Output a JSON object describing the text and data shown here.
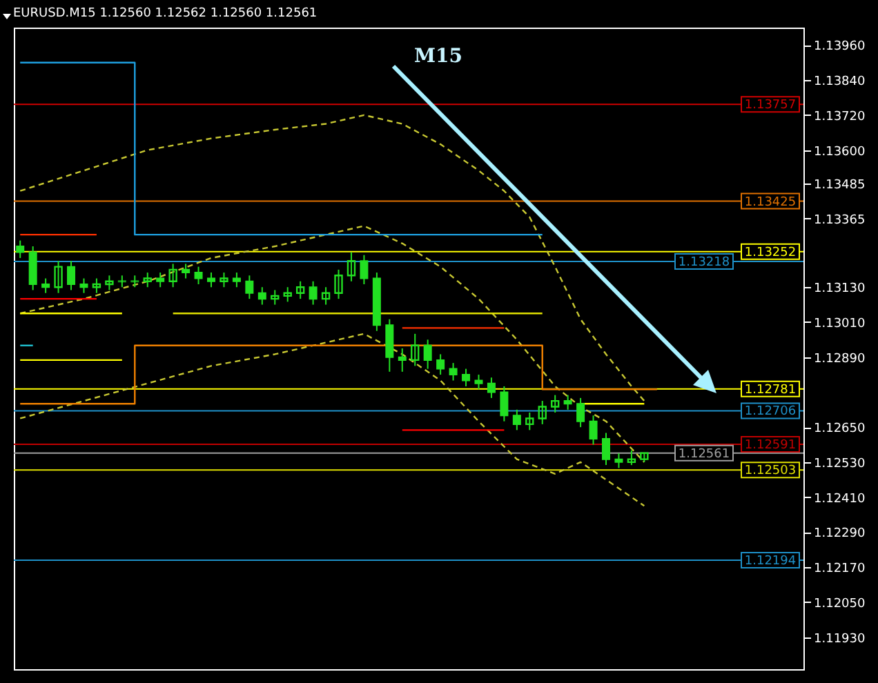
{
  "chart_data": {
    "type": "candlestick",
    "title": "EURUSD.M15  1.12560 1.12562 1.12560 1.12561",
    "annotations": [
      "M15"
    ],
    "categories": [
      null,
      null,
      null,
      null,
      null,
      null,
      null,
      null,
      null,
      null,
      null,
      null,
      null,
      null,
      null,
      null,
      null,
      null,
      null,
      null,
      null,
      null,
      null,
      null,
      null,
      null,
      null,
      null,
      null,
      null,
      null,
      null,
      null,
      null,
      null,
      null,
      null,
      null,
      null,
      null,
      null,
      null,
      null,
      null,
      null,
      null,
      null,
      null,
      null,
      null,
      null,
      null,
      null,
      null,
      null,
      null,
      null,
      null,
      null,
      null,
      null,
      null
    ],
    "color": "#22e022",
    "ohlc": [
      [
        1.1327,
        1.1329,
        1.1323,
        1.1325
      ],
      [
        1.1325,
        1.1327,
        1.1312,
        1.1314
      ],
      [
        1.1314,
        1.1316,
        1.1311,
        1.1313
      ],
      [
        1.1313,
        1.1322,
        1.1311,
        1.132
      ],
      [
        1.132,
        1.1322,
        1.1312,
        1.1314
      ],
      [
        1.1314,
        1.1316,
        1.1311,
        1.1313
      ],
      [
        1.1313,
        1.1316,
        1.1311,
        1.1314
      ],
      [
        1.1314,
        1.1317,
        1.1312,
        1.1315
      ],
      [
        1.1315,
        1.1317,
        1.1313,
        1.1315
      ],
      [
        1.1315,
        1.1317,
        1.1313,
        1.1315
      ],
      [
        1.1315,
        1.1318,
        1.1313,
        1.1316
      ],
      [
        1.1316,
        1.1318,
        1.1313,
        1.1315
      ],
      [
        1.1315,
        1.1321,
        1.1313,
        1.1319
      ],
      [
        1.1319,
        1.1321,
        1.1316,
        1.1318
      ],
      [
        1.1318,
        1.132,
        1.1314,
        1.1316
      ],
      [
        1.1316,
        1.1318,
        1.1313,
        1.1315
      ],
      [
        1.1315,
        1.1318,
        1.1313,
        1.1316
      ],
      [
        1.1316,
        1.1318,
        1.1313,
        1.1315
      ],
      [
        1.1315,
        1.1317,
        1.1309,
        1.1311
      ],
      [
        1.1311,
        1.1313,
        1.1307,
        1.1309
      ],
      [
        1.1309,
        1.1312,
        1.1307,
        1.131
      ],
      [
        1.131,
        1.1313,
        1.1308,
        1.1311
      ],
      [
        1.1311,
        1.1315,
        1.1309,
        1.1313
      ],
      [
        1.1313,
        1.1315,
        1.1307,
        1.1309
      ],
      [
        1.1309,
        1.1313,
        1.1307,
        1.1311
      ],
      [
        1.1311,
        1.1319,
        1.1309,
        1.1317
      ],
      [
        1.1317,
        1.1325,
        1.1315,
        1.1322
      ],
      [
        1.1322,
        1.1324,
        1.1314,
        1.1316
      ],
      [
        1.1316,
        1.1318,
        1.1298,
        1.13
      ],
      [
        1.13,
        1.1302,
        1.1284,
        1.1289
      ],
      [
        1.1289,
        1.1292,
        1.1284,
        1.1288
      ],
      [
        1.1288,
        1.1297,
        1.1286,
        1.1293
      ],
      [
        1.1293,
        1.1295,
        1.1285,
        1.1288
      ],
      [
        1.1288,
        1.129,
        1.1283,
        1.1285
      ],
      [
        1.1285,
        1.1287,
        1.1281,
        1.1283
      ],
      [
        1.1283,
        1.1285,
        1.1279,
        1.1281
      ],
      [
        1.1281,
        1.1283,
        1.1278,
        1.128
      ],
      [
        1.128,
        1.1282,
        1.1275,
        1.1277
      ],
      [
        1.1277,
        1.1279,
        1.1267,
        1.1269
      ],
      [
        1.1269,
        1.1271,
        1.1264,
        1.1266
      ],
      [
        1.1266,
        1.127,
        1.1264,
        1.1268
      ],
      [
        1.1268,
        1.1274,
        1.1266,
        1.1272
      ],
      [
        1.1272,
        1.1276,
        1.127,
        1.1274
      ],
      [
        1.1274,
        1.1276,
        1.1271,
        1.1273
      ],
      [
        1.1273,
        1.1275,
        1.1265,
        1.1267
      ],
      [
        1.1267,
        1.1269,
        1.1259,
        1.1261
      ],
      [
        1.1261,
        1.1263,
        1.1252,
        1.1254
      ],
      [
        1.1254,
        1.1256,
        1.1251,
        1.1253
      ],
      [
        1.1253,
        1.1257,
        1.1252,
        1.1254
      ],
      [
        1.1254,
        1.12562,
        1.1253,
        1.12561
      ],
      null,
      null,
      null,
      null,
      null,
      null,
      null,
      null,
      null,
      null,
      null,
      null
    ],
    "series": [
      {
        "type": "line",
        "line_style": "dashed",
        "color": "#c8c832",
        "values": [
          1.1346,
          null,
          null,
          null,
          null,
          1.1353,
          null,
          null,
          null,
          null,
          1.136,
          null,
          null,
          null,
          null,
          1.1364,
          null,
          null,
          null,
          null,
          1.1367,
          null,
          null,
          null,
          1.1369,
          null,
          null,
          1.1372,
          null,
          null,
          1.1369,
          null,
          null,
          1.1362,
          null,
          null,
          1.1353,
          null,
          1.1346,
          null,
          1.1337,
          null,
          1.132,
          null,
          1.1302,
          null,
          1.129,
          null,
          1.1279,
          1.1274,
          null,
          null,
          null,
          null,
          null,
          null,
          null,
          null,
          null,
          null,
          null,
          null
        ]
      },
      {
        "type": "line",
        "line_style": "dashed",
        "color": "#c8c832",
        "values": [
          1.1304,
          null,
          null,
          null,
          null,
          1.1309,
          null,
          null,
          null,
          null,
          1.1315,
          null,
          null,
          null,
          null,
          1.1323,
          null,
          null,
          null,
          null,
          1.1327,
          null,
          null,
          null,
          null,
          1.1332,
          null,
          1.1334,
          null,
          null,
          1.1328,
          null,
          null,
          1.132,
          null,
          null,
          1.1309,
          null,
          null,
          1.1295,
          null,
          null,
          1.1279,
          null,
          1.1272,
          null,
          1.1267,
          null,
          null,
          1.1253,
          null,
          null,
          null,
          null,
          null,
          null,
          null,
          null,
          null,
          null,
          null,
          null
        ]
      },
      {
        "type": "line",
        "line_style": "dashed",
        "color": "#c8c832",
        "values": [
          1.1268,
          null,
          null,
          null,
          null,
          1.1274,
          null,
          null,
          null,
          null,
          1.128,
          null,
          null,
          null,
          null,
          1.1286,
          null,
          null,
          null,
          null,
          1.129,
          null,
          null,
          null,
          null,
          1.1295,
          null,
          1.1297,
          null,
          null,
          1.129,
          null,
          null,
          1.1281,
          null,
          null,
          1.1267,
          null,
          null,
          1.1254,
          null,
          null,
          1.1249,
          null,
          1.1253,
          null,
          1.1247,
          null,
          null,
          1.1238,
          null,
          null,
          null,
          null,
          null,
          null,
          null,
          null,
          null,
          null,
          null,
          null
        ]
      },
      {
        "type": "step",
        "color": "#1ea0e0",
        "values": [
          1.139,
          null,
          null,
          null,
          null,
          null,
          null,
          null,
          null,
          1.1331,
          null,
          null,
          null,
          null,
          null,
          null,
          null,
          null,
          null,
          null,
          null,
          null,
          null,
          null,
          null,
          null,
          null,
          null,
          null,
          null,
          null,
          null,
          null,
          null,
          null,
          null,
          null,
          null,
          null,
          null,
          null,
          1.1331,
          null,
          null,
          null,
          null,
          null,
          null,
          null,
          null,
          null,
          null,
          null,
          null,
          null,
          null,
          null,
          null,
          null,
          null,
          null,
          null
        ]
      },
      {
        "type": "step",
        "color": "#f08000",
        "values": [
          1.1273,
          null,
          null,
          null,
          null,
          null,
          null,
          null,
          null,
          1.1293,
          null,
          null,
          null,
          null,
          null,
          null,
          null,
          null,
          null,
          null,
          null,
          null,
          null,
          null,
          null,
          null,
          null,
          null,
          null,
          null,
          null,
          null,
          null,
          null,
          null,
          null,
          null,
          null,
          null,
          null,
          null,
          1.1278,
          null,
          null,
          null,
          null,
          null,
          null,
          null,
          null,
          1.1278,
          null,
          null,
          null,
          null,
          null,
          null,
          null,
          null,
          null,
          null,
          null
        ]
      },
      {
        "type": "line",
        "color": "#ff3000",
        "values": [
          1.1331,
          null,
          null,
          null,
          null,
          null,
          1.1331,
          null,
          null,
          null,
          null,
          null,
          null,
          null,
          null,
          null,
          null,
          null,
          null,
          null,
          null,
          null,
          null,
          null,
          null,
          null,
          null,
          null,
          null,
          null,
          null,
          null,
          null,
          null,
          null,
          null,
          null,
          null,
          null,
          null,
          null,
          null,
          null,
          null,
          null,
          null,
          null,
          null,
          null,
          null,
          null,
          null,
          null,
          null,
          null,
          null,
          null,
          null,
          null,
          null,
          null,
          null
        ]
      },
      {
        "type": "line",
        "color": "#ff0000",
        "values": [
          1.1309,
          null,
          null,
          null,
          null,
          null,
          1.1309,
          null,
          null,
          null,
          null,
          null,
          null,
          null,
          null,
          null,
          null,
          null,
          null,
          null,
          null,
          null,
          null,
          null,
          null,
          null,
          null,
          null,
          null,
          null,
          null,
          null,
          null,
          null,
          null,
          null,
          null,
          null,
          null,
          null,
          null,
          null,
          null,
          null,
          null,
          null,
          null,
          null,
          null,
          null,
          null,
          null,
          null,
          null,
          null,
          null,
          null,
          null,
          null,
          null,
          null,
          null
        ]
      },
      {
        "type": "line",
        "color": "#ffff00",
        "values": [
          1.1304,
          null,
          null,
          null,
          null,
          null,
          null,
          null,
          1.1304,
          null,
          null,
          null,
          null,
          null,
          null,
          null,
          null,
          null,
          null,
          null,
          null,
          null,
          null,
          null,
          null,
          null,
          null,
          null,
          null,
          null,
          null,
          null,
          null,
          null,
          null,
          null,
          null,
          null,
          null,
          null,
          null,
          null,
          null,
          null,
          null,
          null,
          null,
          null,
          null,
          null,
          null,
          null,
          null,
          null,
          null,
          null,
          null,
          null,
          null,
          null,
          null,
          null
        ]
      },
      {
        "type": "line",
        "color": "#e0e000",
        "values": [
          null,
          null,
          null,
          null,
          null,
          null,
          null,
          null,
          null,
          null,
          null,
          null,
          1.1304,
          null,
          null,
          null,
          null,
          null,
          null,
          null,
          null,
          null,
          null,
          null,
          null,
          null,
          null,
          null,
          null,
          null,
          null,
          null,
          null,
          null,
          null,
          null,
          null,
          null,
          null,
          null,
          null,
          1.1304,
          null,
          null,
          null,
          null,
          null,
          null,
          null,
          null,
          null,
          null,
          null,
          null,
          null,
          null,
          null,
          null,
          null,
          null,
          null,
          null
        ]
      },
      {
        "type": "line",
        "color": "#ffff00",
        "values": [
          1.1288,
          null,
          null,
          null,
          null,
          null,
          null,
          null,
          1.1288,
          null,
          null,
          null,
          null,
          null,
          null,
          null,
          null,
          null,
          null,
          null,
          null,
          null,
          null,
          null,
          null,
          null,
          null,
          null,
          null,
          null,
          null,
          null,
          null,
          null,
          null,
          null,
          null,
          null,
          null,
          null,
          null,
          null,
          null,
          null,
          null,
          null,
          null,
          null,
          null,
          null,
          null,
          null,
          null,
          null,
          null,
          null,
          null,
          null,
          null,
          null,
          null,
          null
        ]
      },
      {
        "type": "line",
        "color": "#20c0d0",
        "values": [
          1.1293,
          1.1293,
          null,
          null,
          null,
          null,
          null,
          null,
          null,
          null,
          null,
          null,
          null,
          null,
          null,
          null,
          null,
          null,
          null,
          null,
          null,
          null,
          null,
          null,
          null,
          null,
          null,
          null,
          null,
          null,
          null,
          null,
          null,
          null,
          null,
          null,
          null,
          null,
          null,
          null,
          null,
          null,
          null,
          null,
          null,
          null,
          null,
          null,
          null,
          null,
          null,
          null,
          null,
          null,
          null,
          null,
          null,
          null,
          null,
          null,
          null,
          null
        ]
      },
      {
        "type": "line",
        "color": "#ff3000",
        "values": [
          null,
          null,
          null,
          null,
          null,
          null,
          null,
          null,
          null,
          null,
          null,
          null,
          null,
          null,
          null,
          null,
          null,
          null,
          null,
          null,
          null,
          null,
          null,
          null,
          null,
          null,
          null,
          null,
          null,
          null,
          1.1299,
          null,
          null,
          null,
          null,
          null,
          null,
          null,
          1.1299,
          null,
          null,
          null,
          null,
          null,
          null,
          null,
          null,
          null,
          null,
          null,
          null,
          null,
          null,
          null,
          null,
          null,
          null,
          null,
          null,
          null,
          null,
          null
        ]
      },
      {
        "type": "line",
        "color": "#ff0000",
        "values": [
          null,
          null,
          null,
          null,
          null,
          null,
          null,
          null,
          null,
          null,
          null,
          null,
          null,
          null,
          null,
          null,
          null,
          null,
          null,
          null,
          null,
          null,
          null,
          null,
          null,
          null,
          null,
          null,
          null,
          null,
          1.1264,
          null,
          null,
          null,
          null,
          null,
          null,
          null,
          1.1264,
          null,
          null,
          null,
          null,
          null,
          null,
          null,
          null,
          null,
          null,
          null,
          null,
          null,
          null,
          null,
          null,
          null,
          null,
          null,
          null,
          null,
          null,
          null
        ]
      },
      {
        "type": "line",
        "color": "#ffff00",
        "values": [
          null,
          null,
          null,
          null,
          null,
          null,
          null,
          null,
          null,
          null,
          null,
          null,
          null,
          null,
          null,
          null,
          null,
          null,
          null,
          null,
          null,
          null,
          null,
          null,
          null,
          null,
          null,
          null,
          null,
          null,
          null,
          null,
          null,
          null,
          null,
          null,
          null,
          null,
          null,
          null,
          null,
          null,
          null,
          null,
          1.1273,
          null,
          null,
          null,
          null,
          1.1273,
          null,
          null,
          null,
          null,
          null,
          null,
          null,
          null,
          null,
          null,
          null,
          null
        ]
      }
    ],
    "ref_lines": [
      {
        "axis": "y",
        "value": 1.13757,
        "label": "1.13757",
        "color": "#d00000"
      },
      {
        "axis": "y",
        "value": 1.13425,
        "label": "1.13425",
        "color": "#e07000"
      },
      {
        "axis": "y",
        "value": 1.13252,
        "label": "1.13252",
        "color": "#ffff00"
      },
      {
        "axis": "y",
        "value": 1.13218,
        "label": "1.13218",
        "color": "#1e90c8"
      },
      {
        "axis": "y",
        "value": 1.12781,
        "label": "1.12781",
        "color": "#ffff00"
      },
      {
        "axis": "y",
        "value": 1.12706,
        "label": "1.12706",
        "color": "#1e90c8"
      },
      {
        "axis": "y",
        "value": 1.12591,
        "label": "1.12591",
        "color": "#c00000"
      },
      {
        "axis": "y",
        "value": 1.12561,
        "label": "1.12561",
        "color": "#a0a0a0"
      },
      {
        "axis": "y",
        "value": 1.12503,
        "label": "1.12503",
        "color": "#e0e000"
      },
      {
        "axis": "y",
        "value": 1.12194,
        "label": "1.12194",
        "color": "#1e90c8"
      }
    ],
    "ylim": [
      1.1182,
      1.1402
    ],
    "yticks": [
      {
        "value": 1.1396,
        "label": "1.13960"
      },
      {
        "value": 1.1384,
        "label": "1.13840"
      },
      {
        "value": 1.1372,
        "label": "1.13720"
      },
      {
        "value": 1.136,
        "label": "1.13600"
      },
      {
        "value": 1.13485,
        "label": "1.13485"
      },
      {
        "value": 1.13365,
        "label": "1.13365"
      },
      {
        "value": 1.1313,
        "label": "1.13130"
      },
      {
        "value": 1.1301,
        "label": "1.13010"
      },
      {
        "value": 1.1289,
        "label": "1.12890"
      },
      {
        "value": 1.1265,
        "label": "1.12650"
      },
      {
        "value": 1.1253,
        "label": "1.12530"
      },
      {
        "value": 1.1241,
        "label": "1.12410"
      },
      {
        "value": 1.1229,
        "label": "1.12290"
      },
      {
        "value": 1.1217,
        "label": "1.12170"
      },
      {
        "value": 1.1205,
        "label": "1.12050"
      },
      {
        "value": 1.1193,
        "label": "1.11930"
      }
    ],
    "tick_labels": "y"
  }
}
